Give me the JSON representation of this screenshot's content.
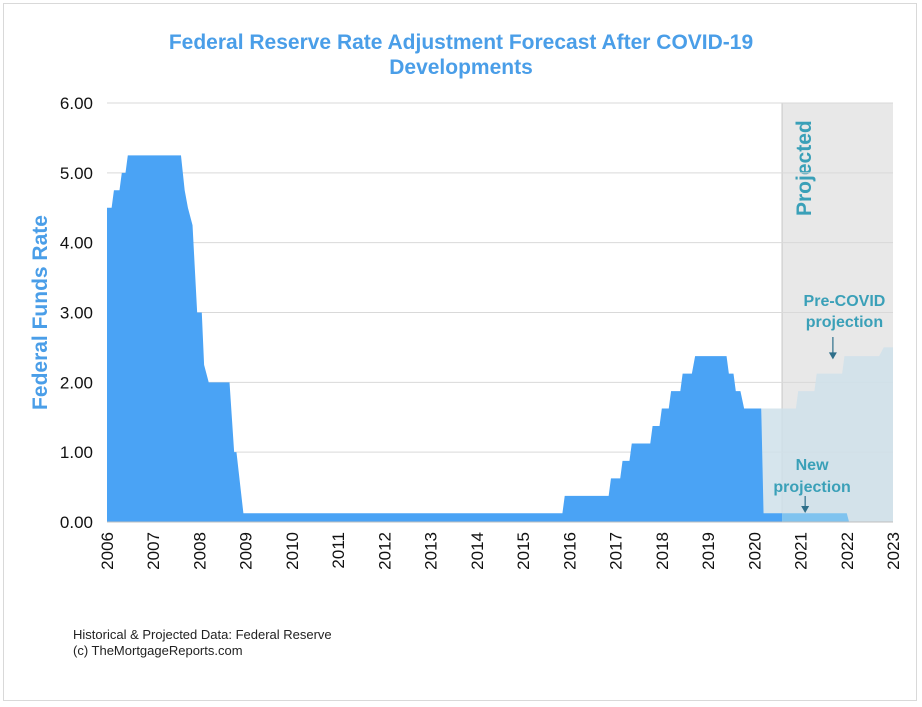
{
  "title_line1": "Federal Reserve Rate Adjustment Forecast After COVID-19",
  "title_line2": "Developments",
  "credits_line1": "Historical & Projected Data: Federal Reserve",
  "credits_line2": "(c) TheMortgageReports.com",
  "colors": {
    "title": "#4a9ee8",
    "historical_fill": "#4aa3f5",
    "pre_covid_fill": "#cfe1ea",
    "new_projection_fill": "#7fc3ef",
    "projected_band": "#e8e8e8",
    "annotation": "#3aa0b8",
    "gridline": "#d9d9d9"
  },
  "chart_data": {
    "type": "area",
    "ylabel": "Federal Funds Rate",
    "xlabel": "",
    "ylim": [
      0,
      6
    ],
    "yticks": [
      "0.00",
      "1.00",
      "2.00",
      "3.00",
      "4.00",
      "5.00",
      "6.00"
    ],
    "xlim": [
      2006,
      2023
    ],
    "xticks": [
      "2006",
      "2007",
      "2008",
      "2009",
      "2010",
      "2011",
      "2012",
      "2013",
      "2014",
      "2015",
      "2016",
      "2017",
      "2018",
      "2019",
      "2020",
      "2021",
      "2022",
      "2023"
    ],
    "grid": true,
    "projected_region": {
      "label": "Projected",
      "x_start": 2020.6,
      "x_end": 2023
    },
    "series": [
      {
        "name": "",
        "points": [
          [
            2006.0,
            4.5
          ],
          [
            2006.1,
            4.5
          ],
          [
            2006.15,
            4.75
          ],
          [
            2006.27,
            4.75
          ],
          [
            2006.32,
            5.0
          ],
          [
            2006.4,
            5.0
          ],
          [
            2006.45,
            5.25
          ],
          [
            2007.6,
            5.25
          ],
          [
            2007.68,
            4.75
          ],
          [
            2007.75,
            4.5
          ],
          [
            2007.85,
            4.25
          ],
          [
            2007.95,
            3.0
          ],
          [
            2008.05,
            3.0
          ],
          [
            2008.1,
            2.25
          ],
          [
            2008.2,
            2.0
          ],
          [
            2008.65,
            2.0
          ],
          [
            2008.75,
            1.0
          ],
          [
            2008.8,
            1.0
          ],
          [
            2008.95,
            0.125
          ],
          [
            2015.85,
            0.125
          ],
          [
            2015.9,
            0.375
          ],
          [
            2016.85,
            0.375
          ],
          [
            2016.9,
            0.625
          ],
          [
            2017.1,
            0.625
          ],
          [
            2017.15,
            0.875
          ],
          [
            2017.3,
            0.875
          ],
          [
            2017.35,
            1.125
          ],
          [
            2017.75,
            1.125
          ],
          [
            2017.8,
            1.375
          ],
          [
            2017.95,
            1.375
          ],
          [
            2018.0,
            1.625
          ],
          [
            2018.15,
            1.625
          ],
          [
            2018.2,
            1.875
          ],
          [
            2018.4,
            1.875
          ],
          [
            2018.45,
            2.125
          ],
          [
            2018.65,
            2.125
          ],
          [
            2018.72,
            2.375
          ],
          [
            2019.4,
            2.375
          ],
          [
            2019.45,
            2.125
          ],
          [
            2019.55,
            2.125
          ],
          [
            2019.6,
            1.875
          ],
          [
            2019.7,
            1.875
          ],
          [
            2019.78,
            1.625
          ],
          [
            2020.15,
            1.625
          ],
          [
            2020.2,
            0.125
          ],
          [
            2020.6,
            0.125
          ]
        ]
      },
      {
        "name": "Pre-COVID projection",
        "points": [
          [
            2020.15,
            1.625
          ],
          [
            2020.9,
            1.625
          ],
          [
            2020.95,
            1.875
          ],
          [
            2021.3,
            1.875
          ],
          [
            2021.35,
            2.125
          ],
          [
            2021.9,
            2.125
          ],
          [
            2021.95,
            2.375
          ],
          [
            2022.7,
            2.375
          ],
          [
            2022.8,
            2.5
          ],
          [
            2023.0,
            2.5
          ]
        ]
      },
      {
        "name": "New projection",
        "points": [
          [
            2020.6,
            0.125
          ],
          [
            2022.0,
            0.125
          ],
          [
            2022.05,
            0.0
          ],
          [
            2023.0,
            0.0
          ]
        ]
      }
    ],
    "annotations": [
      {
        "label_lines": [
          "Pre-COVID",
          "projection"
        ],
        "points_to": [
          2021.7,
          2.2
        ]
      },
      {
        "label_lines": [
          "New",
          "projection"
        ],
        "points_to": [
          2021.1,
          0.15
        ]
      }
    ]
  }
}
